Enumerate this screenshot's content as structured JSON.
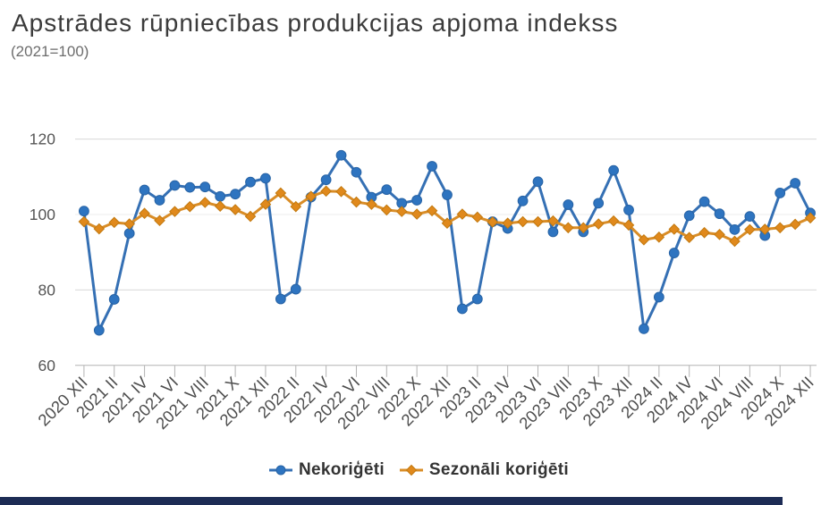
{
  "title": "Apstrādes rūpniecības produkcijas apjoma indekss",
  "subtitle": "(2021=100)",
  "legend": [
    {
      "label": "Nekoriģēti",
      "marker": "circle"
    },
    {
      "label": "Sezonāli koriģēti",
      "marker": "diamond"
    }
  ],
  "footer_bar_color": "#1d2c55",
  "chart_data": {
    "type": "line",
    "x": [
      "2020 XII",
      "2021 I",
      "2021 II",
      "2021 III",
      "2021 IV",
      "2021 V",
      "2021 VI",
      "2021 VII",
      "2021 VIII",
      "2021 IX",
      "2021 X",
      "2021 XI",
      "2021 XII",
      "2022 I",
      "2022 II",
      "2022 III",
      "2022 IV",
      "2022 V",
      "2022 VI",
      "2022 VII",
      "2022 VIII",
      "2022 IX",
      "2022 X",
      "2022 XI",
      "2022 XII",
      "2023 I",
      "2023 II",
      "2023 III",
      "2023 IV",
      "2023 V",
      "2023 VI",
      "2023 VII",
      "2023 VIII",
      "2023 IX",
      "2023 X",
      "2023 XI",
      "2023 XII",
      "2024 I",
      "2024 II",
      "2024 III",
      "2024 IV",
      "2024 V",
      "2024 VI",
      "2024 VII",
      "2024 VIII",
      "2024 IX",
      "2024 X",
      "2024 XI",
      "2024 XII"
    ],
    "x_tick_labels": [
      "2020 XII",
      "2021 II",
      "2021 IV",
      "2021 VI",
      "2021 VIII",
      "2021 X",
      "2021 XII",
      "2022 II",
      "2022 IV",
      "2022 VI",
      "2022 VIII",
      "2022 X",
      "2022 XII",
      "2023 II",
      "2023 IV",
      "2023 VI",
      "2023 VIII",
      "2023 X",
      "2023 XII",
      "2024 II",
      "2024 IV",
      "2024 VI",
      "2024 VIII",
      "2024 X",
      "2024 XII"
    ],
    "series": [
      {
        "name": "Nekoriģēti",
        "color": "#3570b4",
        "marker": "circle",
        "marker_fill": "#2e74c0",
        "marker_stroke": "#2763a5",
        "values": [
          100.9,
          69.3,
          77.5,
          95.0,
          106.5,
          103.8,
          107.7,
          107.2,
          107.3,
          104.8,
          105.4,
          108.6,
          109.6,
          77.6,
          80.2,
          104.6,
          109.2,
          115.7,
          111.2,
          104.6,
          106.6,
          103.0,
          103.8,
          112.8,
          105.2,
          75.0,
          77.6,
          98.1,
          96.3,
          103.6,
          108.7,
          95.4,
          102.6,
          95.4,
          103.0,
          111.7,
          101.2,
          69.7,
          78.1,
          89.8,
          99.7,
          103.4,
          100.2,
          96.0,
          99.5,
          94.4,
          105.7,
          108.3,
          100.4
        ]
      },
      {
        "name": "Sezonāli koriģēti",
        "color": "#d98d27",
        "marker": "diamond",
        "marker_fill": "#e0891c",
        "marker_stroke": "#c2790f",
        "values": [
          98.1,
          96.2,
          97.9,
          97.5,
          100.3,
          98.4,
          100.8,
          102.1,
          103.2,
          102.2,
          101.3,
          99.5,
          102.7,
          105.7,
          102.1,
          104.8,
          106.2,
          106.1,
          103.3,
          102.7,
          101.2,
          100.8,
          100.1,
          101.0,
          97.7,
          100.1,
          99.3,
          98.0,
          97.7,
          98.1,
          98.1,
          98.3,
          96.5,
          96.5,
          97.5,
          98.3,
          97.2,
          93.3,
          94.0,
          96.1,
          93.9,
          95.2,
          94.7,
          92.9,
          96.0,
          96.1,
          96.5,
          97.4,
          99.1
        ]
      }
    ],
    "ylim": [
      60,
      120
    ],
    "y_ticks": [
      60,
      80,
      100,
      120
    ],
    "grid": true,
    "legend_position": "bottom",
    "xlabel": "",
    "ylabel": ""
  }
}
